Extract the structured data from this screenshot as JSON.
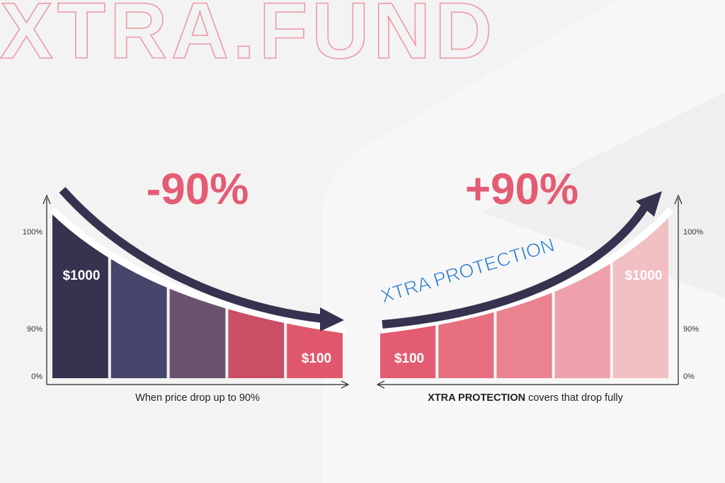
{
  "brand": {
    "watermark": "XTRA.FUND"
  },
  "colors": {
    "background": "#f3f3f3",
    "accent": "#e45c73",
    "arrow": "#35334f",
    "axis": "#222222",
    "protection_text": "#2f7fd0",
    "left_bars": [
      "#36334f",
      "#46456b",
      "#6b5370",
      "#ca4f66",
      "#e1586d"
    ],
    "right_bars": [
      "#e45c72",
      "#e6707f",
      "#ea8290",
      "#eea1aa",
      "#f2bfc3"
    ]
  },
  "chart_data": [
    {
      "type": "area",
      "title": "-90%",
      "xlabel": "When price drop up to 90%",
      "y_ticks": [
        "100%",
        "90%",
        "0%"
      ],
      "segments": 5,
      "values": [
        1000,
        100
      ],
      "data_labels": [
        "$1000",
        "$100"
      ],
      "arrow": "down"
    },
    {
      "type": "area",
      "title": "+90%",
      "annotation": "XTRA PROTECTION",
      "xlabel_bold": "XTRA PROTECTION",
      "xlabel_rest": " covers that drop fully",
      "y_ticks": [
        "100%",
        "90%",
        "0%"
      ],
      "segments": 5,
      "values": [
        100,
        1000
      ],
      "data_labels": [
        "$100",
        "$1000"
      ],
      "arrow": "up"
    }
  ]
}
